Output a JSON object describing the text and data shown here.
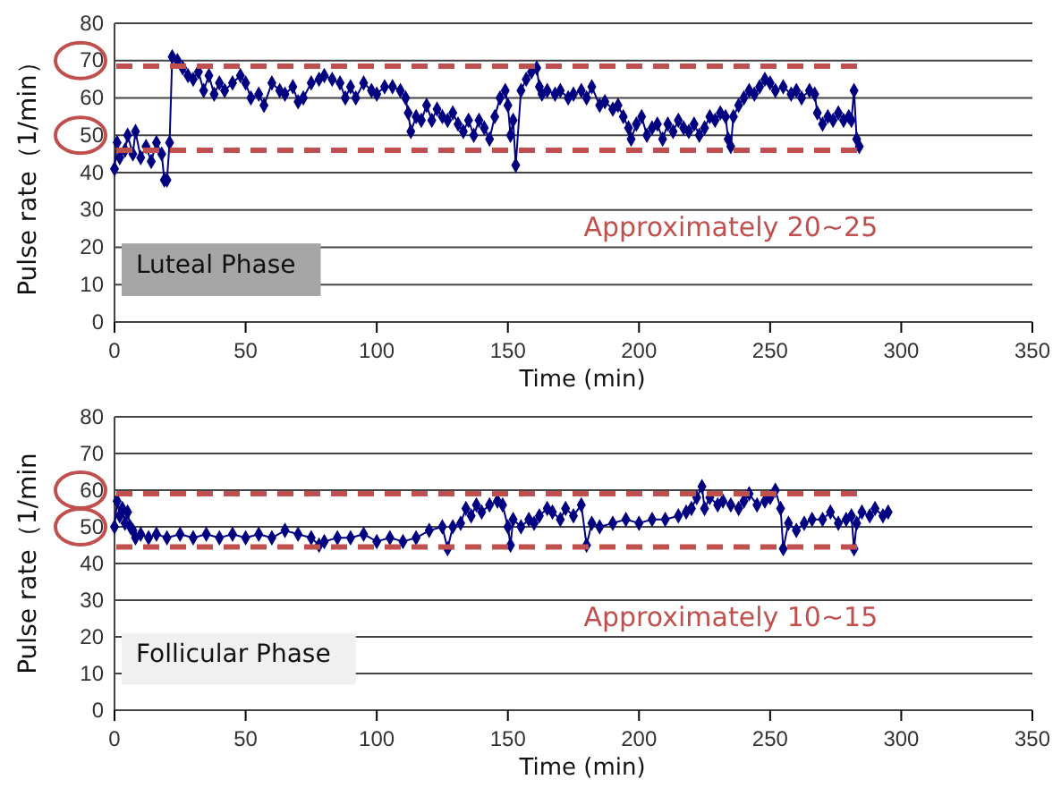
{
  "chart_data": [
    {
      "type": "line",
      "ylabel": "Pulse rate（1/min）",
      "xlabel": "Time (min)",
      "annotations": [
        "Luteal Phase",
        "Approximately 20~25"
      ],
      "marker": "diamond",
      "grid": "y",
      "xlim": [
        0,
        350
      ],
      "xticks": [
        0,
        50,
        100,
        150,
        200,
        250,
        300,
        350
      ],
      "ylim": [
        0,
        80
      ],
      "yticks": [
        0,
        10,
        20,
        30,
        40,
        50,
        60,
        70,
        80
      ],
      "ref_lines": [
        {
          "axis": "y",
          "value": 68.5,
          "color": "#c0504d",
          "line_style": "dashed"
        },
        {
          "axis": "y",
          "value": 46,
          "color": "#c0504d",
          "line_style": "dashed"
        }
      ],
      "series": [
        {
          "color": "#000080",
          "x": [
            0,
            1,
            2,
            4,
            5,
            7,
            8,
            10,
            12,
            14,
            16,
            18,
            19,
            20,
            21,
            22,
            24,
            26,
            28,
            30,
            32,
            34,
            36,
            38,
            40,
            42,
            45,
            48,
            50,
            52,
            55,
            57,
            60,
            63,
            65,
            68,
            70,
            72,
            75,
            78,
            80,
            83,
            86,
            88,
            90,
            92,
            95,
            98,
            100,
            103,
            106,
            109,
            111,
            112,
            113,
            115,
            117,
            119,
            121,
            123,
            125,
            127,
            129,
            131,
            133,
            135,
            137,
            139,
            141,
            143,
            145,
            147,
            149,
            150,
            151,
            152,
            153,
            155,
            157,
            159,
            161,
            162,
            163,
            165,
            168,
            170,
            173,
            175,
            178,
            180,
            182,
            185,
            187,
            190,
            192,
            194,
            196,
            197,
            199,
            201,
            203,
            205,
            207,
            209,
            211,
            213,
            215,
            217,
            219,
            221,
            223,
            225,
            227,
            229,
            231,
            233,
            234,
            235,
            236,
            238,
            240,
            242,
            244,
            246,
            248,
            250,
            252,
            255,
            258,
            260,
            262,
            265,
            267,
            268,
            270,
            272,
            274,
            276,
            278,
            280,
            281,
            282,
            283,
            284
          ],
          "values": [
            41,
            48,
            44,
            46,
            50,
            45,
            51,
            44,
            47,
            43,
            48,
            45,
            38,
            38,
            48,
            71,
            70,
            68,
            66,
            65,
            67,
            62,
            66,
            61,
            64,
            62,
            64,
            66,
            64,
            60,
            61,
            58,
            64,
            62,
            61,
            63,
            59,
            60,
            64,
            65,
            66,
            65,
            64,
            60,
            63,
            60,
            64,
            62,
            61,
            63,
            63,
            62,
            60,
            56,
            51,
            55,
            54,
            58,
            54,
            57,
            55,
            54,
            56,
            53,
            51,
            54,
            50,
            54,
            52,
            49,
            55,
            60,
            62,
            58,
            50,
            54,
            42,
            62,
            65,
            67,
            68,
            63,
            61,
            62,
            61,
            62,
            60,
            61,
            62,
            60,
            63,
            58,
            59,
            57,
            58,
            55,
            52,
            49,
            53,
            55,
            50,
            52,
            53,
            49,
            53,
            51,
            54,
            52,
            51,
            53,
            50,
            52,
            55,
            54,
            56,
            55,
            49,
            47,
            55,
            58,
            60,
            62,
            61,
            63,
            65,
            64,
            62,
            63,
            61,
            62,
            60,
            62,
            61,
            56,
            53,
            55,
            54,
            56,
            54,
            55,
            54,
            62,
            49,
            47
          ]
        }
      ]
    },
    {
      "type": "line",
      "ylabel": "Pulse rate（1/min",
      "xlabel": "Time (min)",
      "annotations": [
        "Follicular Phase",
        "Approximately 10~15"
      ],
      "marker": "diamond",
      "grid": "y",
      "xlim": [
        0,
        350
      ],
      "xticks": [
        0,
        50,
        100,
        150,
        200,
        250,
        300,
        350
      ],
      "ylim": [
        0,
        80
      ],
      "yticks": [
        0,
        10,
        20,
        30,
        40,
        50,
        60,
        70,
        80
      ],
      "ref_lines": [
        {
          "axis": "y",
          "value": 59,
          "color": "#c0504d",
          "line_style": "dashed"
        },
        {
          "axis": "y",
          "value": 44.5,
          "color": "#c0504d",
          "line_style": "dashed"
        }
      ],
      "series": [
        {
          "color": "#000080",
          "x": [
            0,
            1,
            2,
            3,
            4,
            5,
            6,
            7,
            8,
            10,
            13,
            16,
            20,
            25,
            30,
            35,
            40,
            45,
            50,
            55,
            60,
            65,
            70,
            75,
            78,
            80,
            85,
            90,
            95,
            100,
            105,
            110,
            115,
            120,
            125,
            127,
            129,
            132,
            134,
            136,
            138,
            140,
            143,
            146,
            148,
            150,
            151,
            152,
            155,
            158,
            160,
            162,
            165,
            167,
            170,
            172,
            175,
            178,
            180,
            182,
            185,
            190,
            195,
            200,
            205,
            210,
            215,
            218,
            220,
            222,
            224,
            225,
            227,
            230,
            232,
            235,
            238,
            240,
            242,
            245,
            248,
            250,
            252,
            254,
            255,
            257,
            260,
            263,
            266,
            270,
            273,
            276,
            279,
            281,
            282,
            283,
            285,
            288,
            290,
            293,
            295
          ],
          "values": [
            50,
            57,
            53,
            55,
            51,
            54,
            50,
            49,
            47,
            48,
            47,
            48,
            47,
            48,
            47,
            48,
            47,
            48,
            47,
            48,
            47,
            49,
            48,
            47,
            45,
            46,
            47,
            47,
            48,
            46,
            47,
            46,
            47,
            49,
            50,
            44,
            50,
            51,
            55,
            53,
            56,
            54,
            56,
            57,
            56,
            50,
            45,
            52,
            50,
            52,
            51,
            53,
            55,
            54,
            52,
            55,
            53,
            56,
            45,
            51,
            50,
            51,
            52,
            51,
            52,
            52,
            53,
            54,
            55,
            58,
            61,
            55,
            58,
            56,
            57,
            56,
            55,
            57,
            59,
            56,
            57,
            58,
            60,
            55,
            44,
            51,
            49,
            51,
            52,
            52,
            54,
            51,
            52,
            53,
            44,
            51,
            54,
            53,
            55,
            53,
            54
          ]
        }
      ]
    }
  ]
}
